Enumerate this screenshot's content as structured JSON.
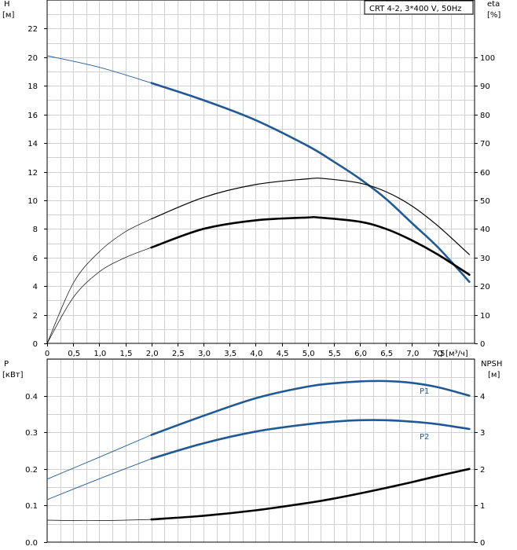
{
  "chart_data": [
    {
      "type": "line",
      "title": "CRT 4-2, 3*400 V, 50Hz",
      "xlabel": "Q [м³/ч]",
      "xlim": [
        0,
        8.2
      ],
      "x_ticks": [
        "0",
        "0,5",
        "1,0",
        "1,5",
        "2,0",
        "2,5",
        "3,0",
        "3,5",
        "4,0",
        "4,5",
        "5,0",
        "5,5",
        "6,0",
        "6,5",
        "7,0",
        "7,5"
      ],
      "y_left": {
        "label_top": "H",
        "label_unit": "[м]",
        "range": [
          0,
          24
        ],
        "ticks": [
          "0",
          "2",
          "4",
          "6",
          "8",
          "10",
          "12",
          "14",
          "16",
          "18",
          "20",
          "22"
        ]
      },
      "y_right": {
        "label_top": "eta",
        "label_unit": "[%]",
        "range": [
          0,
          120
        ],
        "ticks": [
          "0",
          "10",
          "20",
          "30",
          "40",
          "50",
          "60",
          "70",
          "80",
          "90",
          "100"
        ]
      },
      "grid": true,
      "series": [
        {
          "axis": "left",
          "color": "#1f5a96",
          "x": [
            0,
            1,
            2,
            3,
            4,
            5,
            5.5,
            6,
            6.5,
            7,
            7.5,
            8.1
          ],
          "y": [
            20.1,
            19.3,
            18.2,
            17.0,
            15.6,
            13.8,
            12.7,
            11.5,
            10.1,
            8.4,
            6.7,
            4.3
          ]
        },
        {
          "axis": "right",
          "color": "#000000",
          "x": [
            0,
            0.5,
            1,
            1.5,
            2,
            3,
            4,
            5,
            5.3,
            6,
            6.5,
            7,
            7.5,
            8.1
          ],
          "y": [
            0,
            21,
            32,
            39,
            43.5,
            51,
            55.5,
            57.5,
            57.6,
            56,
            53,
            48,
            41,
            31
          ]
        },
        {
          "axis": "right",
          "color": "#000000",
          "x": [
            0,
            0.5,
            1,
            1.5,
            2,
            3,
            4,
            5,
            5.2,
            6,
            6.5,
            7,
            7.5,
            8.1
          ],
          "y": [
            0,
            16,
            25,
            30,
            33.5,
            40,
            43,
            44,
            44,
            42.5,
            40,
            36,
            31,
            24
          ]
        }
      ]
    },
    {
      "type": "line",
      "xlim": [
        0,
        8.2
      ],
      "y_left": {
        "label_top": "P",
        "label_unit": "[кВт]",
        "range": [
          0,
          0.5
        ],
        "ticks": [
          "0.0",
          "0.1",
          "0.2",
          "0.3",
          "0.4"
        ]
      },
      "y_right": {
        "label_top": "NPSH",
        "label_unit": "[м]",
        "range": [
          0,
          5
        ],
        "ticks": [
          "0",
          "1",
          "2",
          "3",
          "4"
        ]
      },
      "grid": true,
      "series": [
        {
          "name": "P1",
          "axis": "left",
          "color": "#1f5a96",
          "x": [
            0,
            1,
            2,
            3,
            4,
            5,
            5.5,
            6,
            6.5,
            7,
            7.5,
            8.1
          ],
          "y": [
            0.172,
            0.232,
            0.293,
            0.345,
            0.393,
            0.425,
            0.434,
            0.439,
            0.44,
            0.435,
            0.423,
            0.4
          ]
        },
        {
          "name": "P2",
          "axis": "left",
          "color": "#1f5a96",
          "x": [
            0,
            1,
            2,
            3,
            4,
            5,
            5.5,
            6,
            6.5,
            7,
            7.5,
            8.1
          ],
          "y": [
            0.116,
            0.173,
            0.228,
            0.27,
            0.302,
            0.322,
            0.329,
            0.333,
            0.333,
            0.329,
            0.322,
            0.309
          ]
        },
        {
          "axis": "right",
          "color": "#000000",
          "x": [
            0,
            0.5,
            1,
            1.5,
            2,
            3,
            4,
            5,
            5.5,
            6,
            6.5,
            7,
            7.5,
            8.1
          ],
          "y": [
            0.6,
            0.59,
            0.59,
            0.6,
            0.62,
            0.72,
            0.87,
            1.07,
            1.19,
            1.33,
            1.48,
            1.64,
            1.81,
            2.0
          ]
        }
      ]
    }
  ]
}
